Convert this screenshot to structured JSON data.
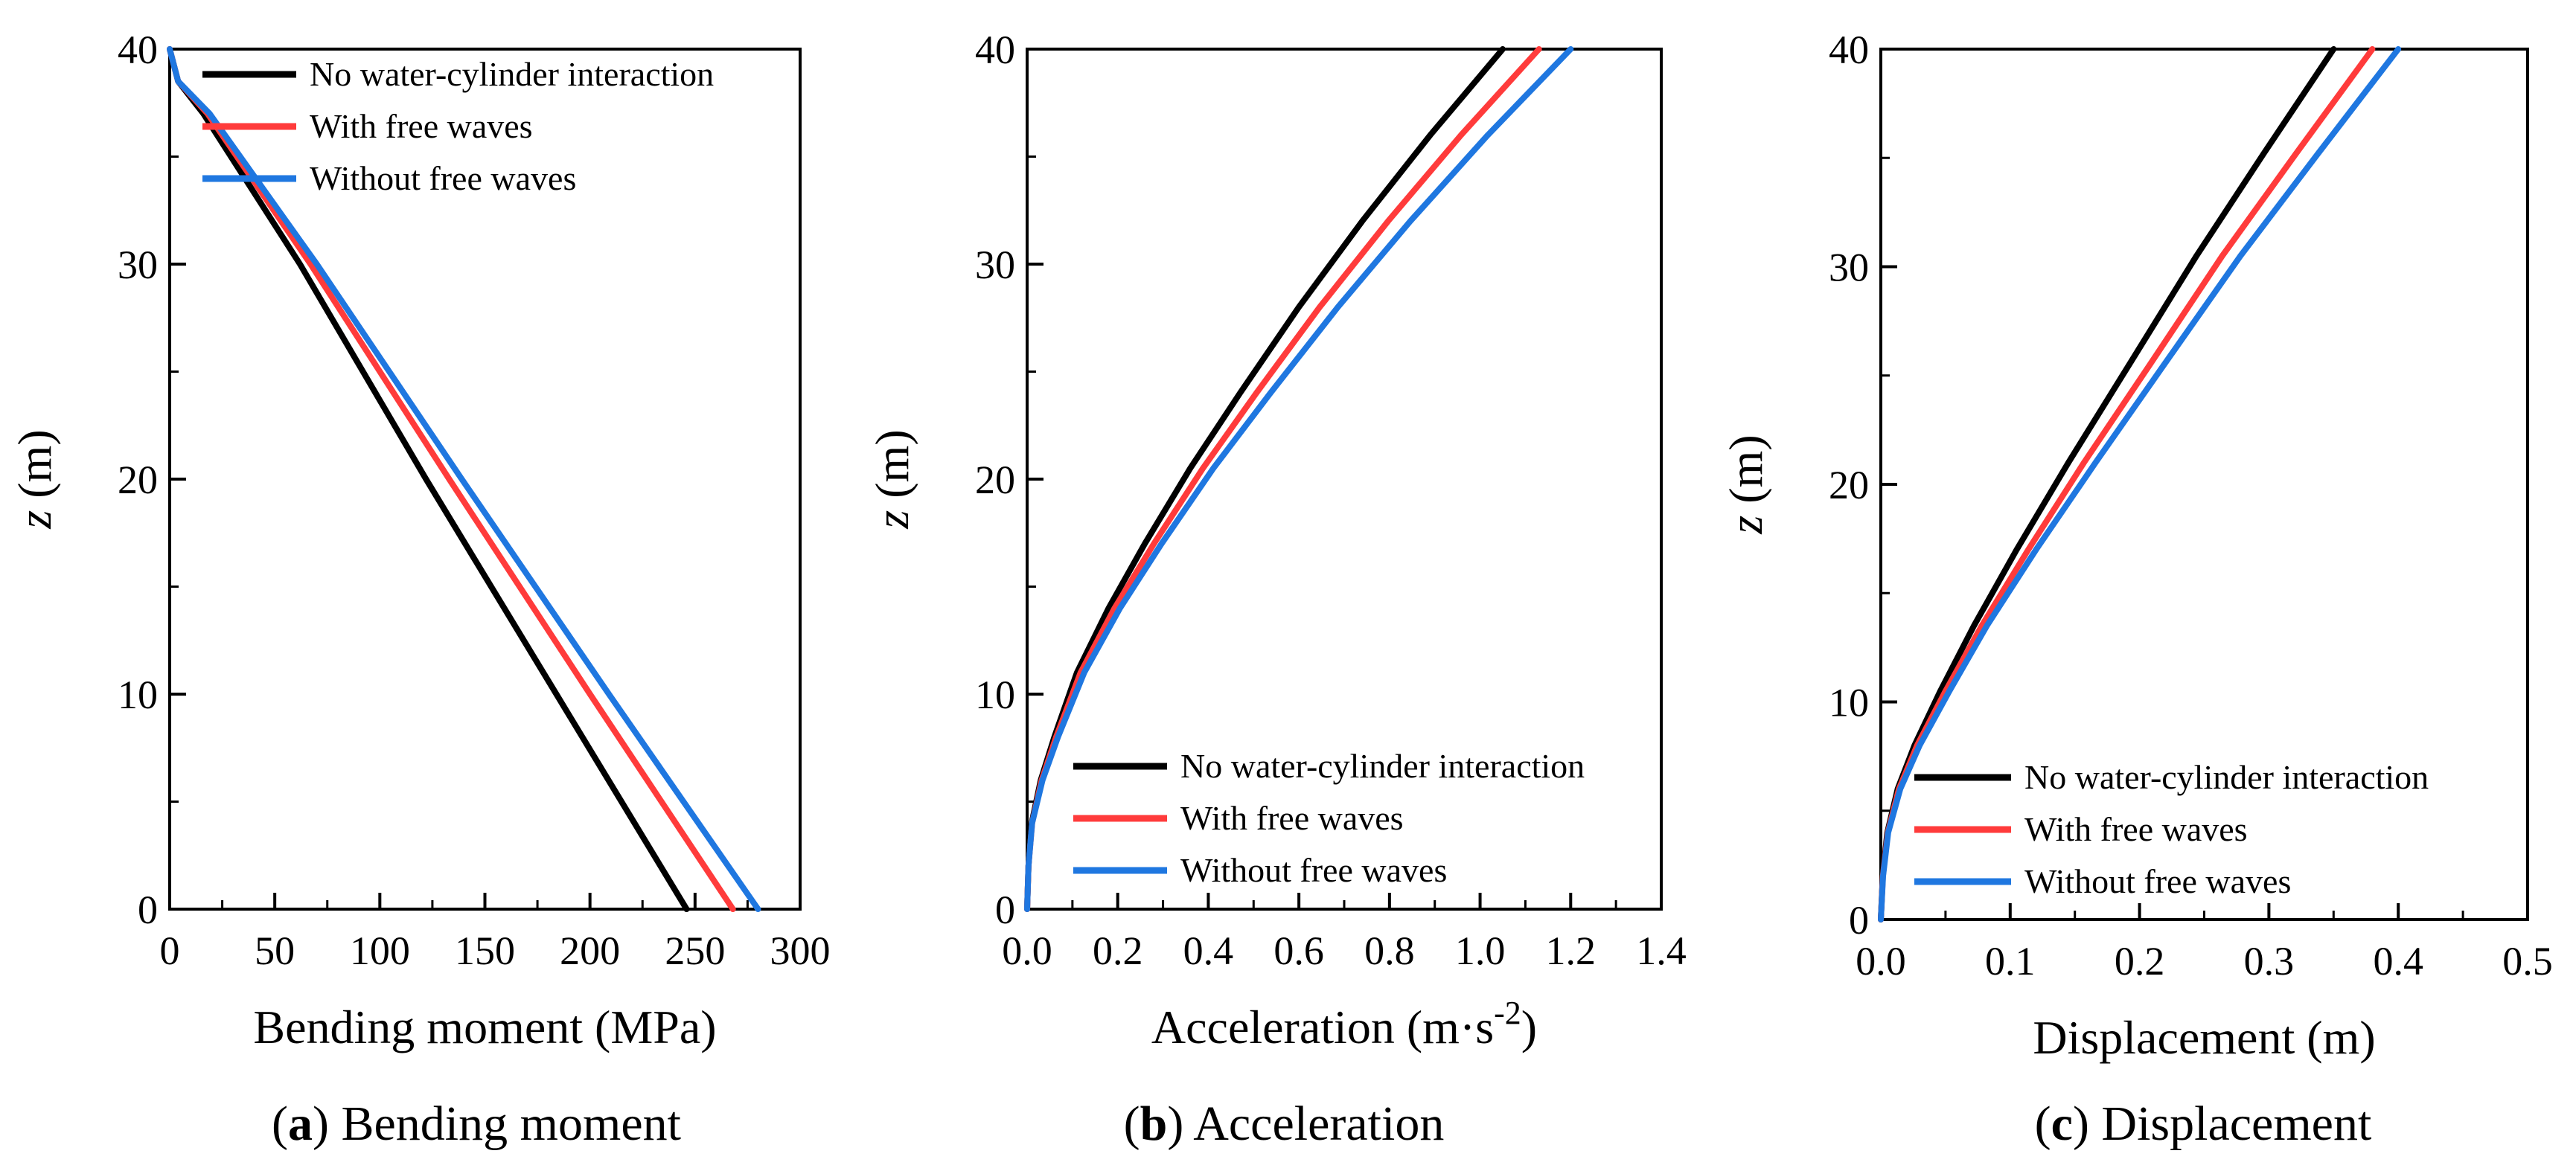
{
  "chart_data": [
    {
      "id": "a",
      "type": "line",
      "caption_letter": "(a)",
      "caption_text": "Bending moment",
      "xlabel": "Bending moment (MPa)",
      "ylabel_var": "z",
      "ylabel_unit": "(m)",
      "xlim": [
        0,
        300
      ],
      "ylim": [
        0,
        40
      ],
      "xticks": [
        0,
        50,
        100,
        150,
        200,
        250,
        300
      ],
      "xtick_labels": [
        "0",
        "50",
        "100",
        "150",
        "200",
        "250",
        "300"
      ],
      "yticks": [
        0,
        10,
        20,
        30,
        40
      ],
      "ytick_labels": [
        "0",
        "10",
        "20",
        "30",
        "40"
      ],
      "legend_position": "top-right",
      "series": [
        {
          "name": "No water-cylinder interaction",
          "color": "#000000",
          "x": [
            246,
            184,
            122,
            62,
            16,
            4,
            0
          ],
          "y": [
            0,
            10,
            20,
            30,
            37,
            38.5,
            40
          ]
        },
        {
          "name": "With free waves",
          "color": "#ff3b3b",
          "x": [
            268,
            200,
            133,
            67,
            18,
            4,
            0
          ],
          "y": [
            0,
            10,
            20,
            30,
            37,
            38.5,
            40
          ]
        },
        {
          "name": "Without free waves",
          "color": "#1f77e0",
          "x": [
            280,
            209,
            139,
            70,
            19,
            4,
            0
          ],
          "y": [
            0,
            10,
            20,
            30,
            37,
            38.5,
            40
          ]
        }
      ]
    },
    {
      "id": "b",
      "type": "line",
      "caption_letter": "(b)",
      "caption_text": "Acceleration",
      "xlabel_main": "Acceleration (m·s",
      "xlabel_sup": "-2",
      "xlabel_end": ")",
      "ylabel_var": "z",
      "ylabel_unit": "(m)",
      "xlim": [
        0,
        1.4
      ],
      "ylim": [
        0,
        40
      ],
      "xticks": [
        0,
        0.2,
        0.4,
        0.6,
        0.8,
        1.0,
        1.2,
        1.4
      ],
      "xtick_labels": [
        "0.0",
        "0.2",
        "0.4",
        "0.6",
        "0.8",
        "1.0",
        "1.2",
        "1.4"
      ],
      "yticks": [
        0,
        10,
        20,
        30,
        40
      ],
      "ytick_labels": [
        "0",
        "10",
        "20",
        "30",
        "40"
      ],
      "legend_position": "bottom-right",
      "series": [
        {
          "name": "No water-cylinder interaction",
          "color": "#000000",
          "x": [
            0,
            0.003,
            0.01,
            0.03,
            0.06,
            0.11,
            0.18,
            0.26,
            0.36,
            0.47,
            0.6,
            0.74,
            0.89,
            1.05
          ],
          "y": [
            0,
            2,
            4,
            6,
            8,
            11,
            14,
            17,
            20.5,
            24,
            28,
            32,
            36,
            40
          ]
        },
        {
          "name": "With free waves",
          "color": "#ff3b3b",
          "x": [
            0,
            0.003,
            0.011,
            0.032,
            0.064,
            0.118,
            0.193,
            0.28,
            0.388,
            0.506,
            0.646,
            0.797,
            0.958,
            1.13
          ],
          "y": [
            0,
            2,
            4,
            6,
            8,
            11,
            14,
            17,
            20.5,
            24,
            28,
            32,
            36,
            40
          ]
        },
        {
          "name": "Without free waves",
          "color": "#1f77e0",
          "x": [
            0,
            0.003,
            0.011,
            0.034,
            0.068,
            0.126,
            0.205,
            0.297,
            0.411,
            0.537,
            0.686,
            0.846,
            1.017,
            1.2
          ],
          "y": [
            0,
            2,
            4,
            6,
            8,
            11,
            14,
            17,
            20.5,
            24,
            28,
            32,
            36,
            40
          ]
        }
      ]
    },
    {
      "id": "c",
      "type": "line",
      "caption_letter": "(c)",
      "caption_text": "Displacement",
      "xlabel": "Displacement (m)",
      "ylabel_var": "z",
      "ylabel_unit": "(m)",
      "xlim": [
        0,
        0.5
      ],
      "ylim": [
        0,
        40
      ],
      "xticks": [
        0,
        0.1,
        0.2,
        0.3,
        0.4,
        0.5
      ],
      "xtick_labels": [
        "0.0",
        "0.1",
        "0.2",
        "0.3",
        "0.4",
        "0.5"
      ],
      "yticks": [
        0,
        10,
        20,
        30,
        40
      ],
      "ytick_labels": [
        "0",
        "10",
        "20",
        "30",
        "40"
      ],
      "legend_position": "bottom-right",
      "series": [
        {
          "name": "No water-cylinder interaction",
          "color": "#000000",
          "x": [
            0,
            0.0015,
            0.005,
            0.013,
            0.026,
            0.046,
            0.072,
            0.105,
            0.145,
            0.192,
            0.244,
            0.296,
            0.35
          ],
          "y": [
            0,
            2,
            4,
            6,
            8,
            10.5,
            13.5,
            17,
            21,
            25.5,
            30.5,
            35.2,
            40
          ]
        },
        {
          "name": "With free waves",
          "color": "#ff3b3b",
          "x": [
            0,
            0.0016,
            0.0054,
            0.014,
            0.028,
            0.05,
            0.078,
            0.114,
            0.157,
            0.208,
            0.264,
            0.321,
            0.38
          ],
          "y": [
            0,
            2,
            4,
            6,
            8,
            10.5,
            13.5,
            17,
            21,
            25.5,
            30.5,
            35.2,
            40
          ]
        },
        {
          "name": "Without free waves",
          "color": "#1f77e0",
          "x": [
            0,
            0.0017,
            0.0057,
            0.015,
            0.03,
            0.053,
            0.082,
            0.12,
            0.166,
            0.219,
            0.278,
            0.338,
            0.4
          ],
          "y": [
            0,
            2,
            4,
            6,
            8,
            10.5,
            13.5,
            17,
            21,
            25.5,
            30.5,
            35.2,
            40
          ]
        }
      ]
    }
  ]
}
